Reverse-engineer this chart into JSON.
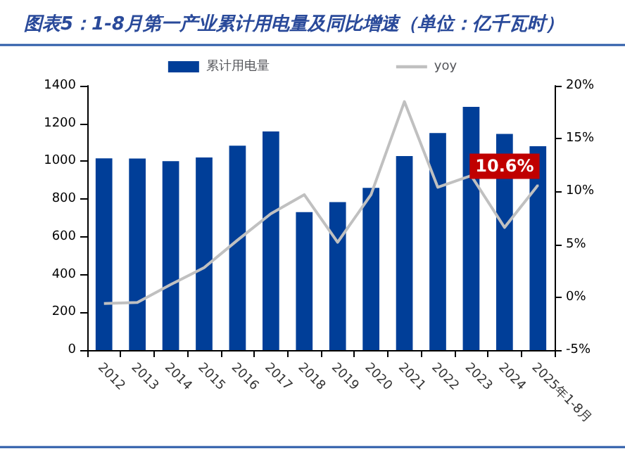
{
  "chart_data": {
    "type": "bar",
    "title": "图表5：1-8月第一产业累计用电量及同比增速（单位：亿千瓦时）",
    "categories": [
      "2012",
      "2013",
      "2014",
      "2015",
      "2016",
      "2017",
      "2018",
      "2019",
      "2020",
      "2021",
      "2022",
      "2023",
      "2024",
      "2025年1-8月"
    ],
    "series": [
      {
        "name": "累计用电量",
        "color": "#003e98",
        "values": [
          1016,
          1015,
          1001,
          1020,
          1083,
          1158,
          731,
          784,
          859,
          1028,
          1150,
          1288,
          1145,
          1080
        ]
      },
      {
        "name": "yoy",
        "type": "line",
        "axis": "y2",
        "color": "#c0c0c0",
        "marker": "none",
        "values": [
          -0.6,
          -0.5,
          1.2,
          2.8,
          5.4,
          7.9,
          9.7,
          5.2,
          9.7,
          18.5,
          10.4,
          11.5,
          6.6,
          10.6
        ],
        "value_labels": [
          null,
          null,
          null,
          null,
          null,
          null,
          null,
          null,
          null,
          null,
          null,
          null,
          null,
          "10.6%"
        ]
      }
    ],
    "ylim": [
      0,
      1400
    ],
    "yticks": [
      0,
      200,
      400,
      600,
      800,
      1000,
      1200,
      1400
    ],
    "y2lim": [
      -5,
      20
    ],
    "y2ticks": [
      {
        "value": -5,
        "label": "-5%"
      },
      {
        "value": 0,
        "label": "0%"
      },
      {
        "value": 5,
        "label": "5%"
      },
      {
        "value": 10,
        "label": "10%"
      },
      {
        "value": 15,
        "label": "15%"
      },
      {
        "value": 20,
        "label": "20%"
      }
    ],
    "grid": false,
    "legend": "top"
  }
}
